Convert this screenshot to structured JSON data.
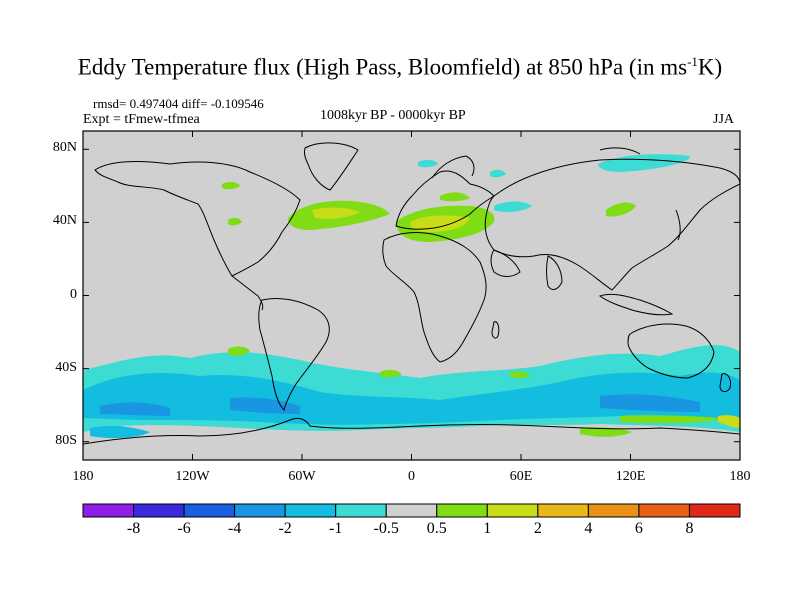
{
  "title": {
    "prefix": "Eddy Temperature flux (High Pass, Bloomfield) at 850 hPa (in ms",
    "sup": "-1",
    "suffix": "K)"
  },
  "stats": {
    "rmsd_diff": "rmsd= 0.497404 diff= -0.109546",
    "expt": "Expt = tFmew-tfmea",
    "period": "1008kyr BP - 0000kyr BP",
    "season": "JJA"
  },
  "axes": {
    "lat_labels": [
      "80N",
      "40N",
      "0",
      "40S",
      "80S"
    ],
    "lat_values": [
      80,
      40,
      0,
      -40,
      -80
    ],
    "lon_labels": [
      "180",
      "120W",
      "60W",
      "0",
      "60E",
      "120E",
      "180"
    ],
    "lon_values": [
      -180,
      -120,
      -60,
      0,
      60,
      120,
      180
    ]
  },
  "colorbar": {
    "labels": [
      "-8",
      "-6",
      "-4",
      "-2",
      "-1",
      "-0.5",
      "0.5",
      "1",
      "2",
      "4",
      "6",
      "8"
    ],
    "colors": [
      "#8f1fe6",
      "#3c28dd",
      "#1b5fdf",
      "#1a95e2",
      "#12bde0",
      "#3cdcd4",
      "#d0d0d0",
      "#80dc14",
      "#c8dc18",
      "#e8b818",
      "#e89018",
      "#e86018",
      "#e02818"
    ]
  },
  "map": {
    "background": "#d0d0d0",
    "lat_range": [
      -90,
      90
    ],
    "lon_range": [
      -180,
      180
    ]
  }
}
